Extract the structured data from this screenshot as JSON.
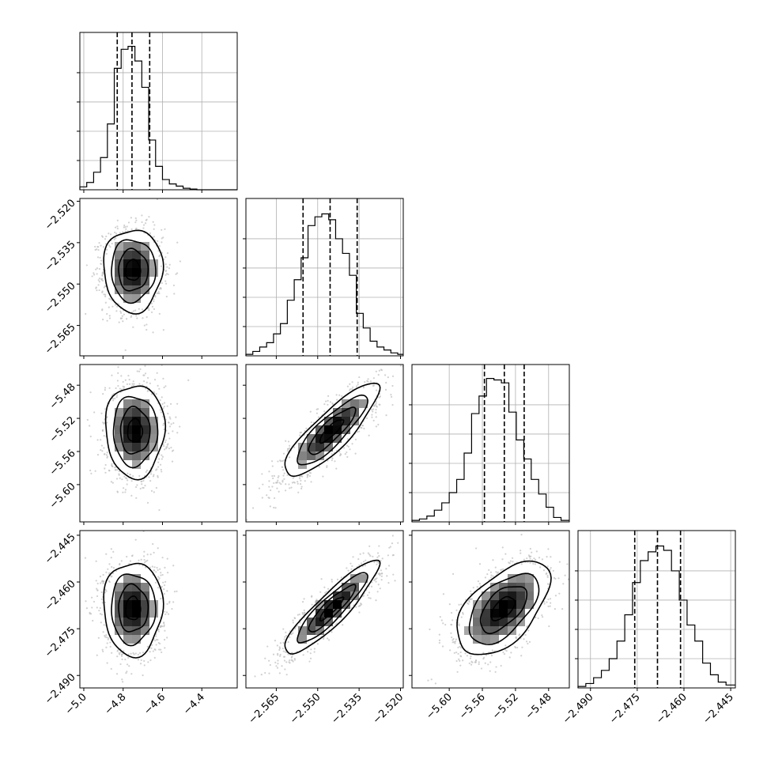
{
  "chart_data": {
    "type": "corner",
    "grid": true,
    "parameters": [
      {
        "key": "p0",
        "range": [
          -5.02,
          -4.22
        ],
        "ticks": [
          -5.0,
          -4.8,
          -4.6,
          -4.4
        ],
        "tick_labels": [
          "−5.0",
          "−4.8",
          "−4.6",
          "−4.4"
        ],
        "quantiles": [
          -4.83,
          -4.755,
          -4.665
        ],
        "hist_ymax": 1.0
      },
      {
        "key": "p1",
        "range": [
          -2.576,
          -2.519
        ],
        "ticks": [
          -2.565,
          -2.55,
          -2.535,
          -2.52
        ],
        "tick_labels": [
          "−2.565",
          "−2.550",
          "−2.535",
          "−2.520"
        ],
        "quantiles": [
          -2.5553,
          -2.5455,
          -2.5357
        ],
        "hist_ymax": 1.0
      },
      {
        "key": "p2",
        "range": [
          -5.645,
          -5.455
        ],
        "ticks": [
          -5.6,
          -5.56,
          -5.52,
          -5.48
        ],
        "tick_labels": [
          "−5.60",
          "−5.56",
          "−5.52",
          "−5.48"
        ],
        "quantiles": [
          -5.5575,
          -5.5335,
          -5.5095
        ],
        "hist_ymax": 1.0
      },
      {
        "key": "p3",
        "range": [
          -2.494,
          -2.4435
        ],
        "ticks": [
          -2.49,
          -2.475,
          -2.46,
          -2.445
        ],
        "tick_labels": [
          "−2.490",
          "−2.475",
          "−2.460",
          "−2.445"
        ],
        "quantiles": [
          -2.4758,
          -2.4685,
          -2.4611
        ],
        "hist_ymax": 1.0
      }
    ],
    "histograms": [
      {
        "edges": [
          -5.02,
          -4.985,
          -4.95,
          -4.915,
          -4.88,
          -4.845,
          -4.81,
          -4.775,
          -4.74,
          -4.705,
          -4.67,
          -4.635,
          -4.6,
          -4.565,
          -4.53,
          -4.495,
          -4.46,
          -4.425,
          -4.39,
          -4.355,
          -4.32,
          -4.285,
          -4.25,
          -4.22
        ],
        "counts": [
          0.02,
          0.05,
          0.12,
          0.22,
          0.45,
          0.83,
          0.96,
          0.98,
          0.88,
          0.7,
          0.34,
          0.16,
          0.07,
          0.04,
          0.025,
          0.01,
          0.005,
          0.0,
          0.0,
          0.0,
          0.0,
          0.0,
          0.0
        ]
      },
      {
        "edges": [
          -2.576,
          -2.5735,
          -2.571,
          -2.5685,
          -2.566,
          -2.5635,
          -2.561,
          -2.5585,
          -2.556,
          -2.5535,
          -2.551,
          -2.5485,
          -2.546,
          -2.5435,
          -2.541,
          -2.5385,
          -2.536,
          -2.5335,
          -2.531,
          -2.5285,
          -2.526,
          -2.5235,
          -2.521,
          -2.519
        ],
        "counts": [
          0.01,
          0.03,
          0.06,
          0.09,
          0.15,
          0.22,
          0.38,
          0.52,
          0.67,
          0.89,
          0.95,
          0.97,
          0.93,
          0.8,
          0.7,
          0.55,
          0.29,
          0.19,
          0.1,
          0.06,
          0.04,
          0.02,
          0.01
        ]
      },
      {
        "edges": [
          -5.645,
          -5.636,
          -5.627,
          -5.618,
          -5.609,
          -5.6,
          -5.591,
          -5.582,
          -5.573,
          -5.564,
          -5.555,
          -5.546,
          -5.537,
          -5.528,
          -5.519,
          -5.51,
          -5.501,
          -5.492,
          -5.483,
          -5.474,
          -5.465,
          -5.455
        ],
        "counts": [
          0.01,
          0.02,
          0.04,
          0.08,
          0.13,
          0.2,
          0.29,
          0.47,
          0.74,
          0.86,
          0.98,
          0.97,
          0.95,
          0.75,
          0.56,
          0.43,
          0.29,
          0.19,
          0.1,
          0.03,
          0.01
        ]
      },
      {
        "edges": [
          -2.494,
          -2.4915,
          -2.489,
          -2.4865,
          -2.484,
          -2.4815,
          -2.479,
          -2.4765,
          -2.474,
          -2.4715,
          -2.469,
          -2.4665,
          -2.464,
          -2.4615,
          -2.459,
          -2.4565,
          -2.454,
          -2.4515,
          -2.449,
          -2.4465,
          -2.4435
        ],
        "counts": [
          0.01,
          0.03,
          0.07,
          0.12,
          0.2,
          0.32,
          0.5,
          0.72,
          0.87,
          0.93,
          0.97,
          0.94,
          0.8,
          0.6,
          0.43,
          0.32,
          0.17,
          0.09,
          0.04,
          0.02
        ]
      }
    ],
    "pairs": [
      {
        "x": 0,
        "y": 1,
        "center": [
          -4.75,
          -2.545
        ],
        "sd": [
          0.075,
          0.0075
        ],
        "rho": 0.0
      },
      {
        "x": 0,
        "y": 2,
        "center": [
          -4.74,
          -5.535
        ],
        "sd": [
          0.075,
          0.028
        ],
        "rho": 0.0
      },
      {
        "x": 1,
        "y": 2,
        "center": [
          -2.545,
          -5.535
        ],
        "sd": [
          0.0085,
          0.028
        ],
        "rho": 0.85
      },
      {
        "x": 0,
        "y": 3,
        "center": [
          -4.75,
          -2.4685
        ],
        "sd": [
          0.075,
          0.0075
        ],
        "rho": 0.0
      },
      {
        "x": 1,
        "y": 3,
        "center": [
          -2.545,
          -2.4685
        ],
        "sd": [
          0.0085,
          0.0075
        ],
        "rho": 0.9
      },
      {
        "x": 2,
        "y": 3,
        "center": [
          -5.535,
          -2.4685
        ],
        "sd": [
          0.028,
          0.0075
        ],
        "rho": 0.55
      }
    ],
    "contour_levels": [
      0.5,
      1.0,
      1.5,
      2.0
    ],
    "colors": {
      "points": "#bdbdbd",
      "density": "#000000",
      "lines": "#000000"
    }
  }
}
